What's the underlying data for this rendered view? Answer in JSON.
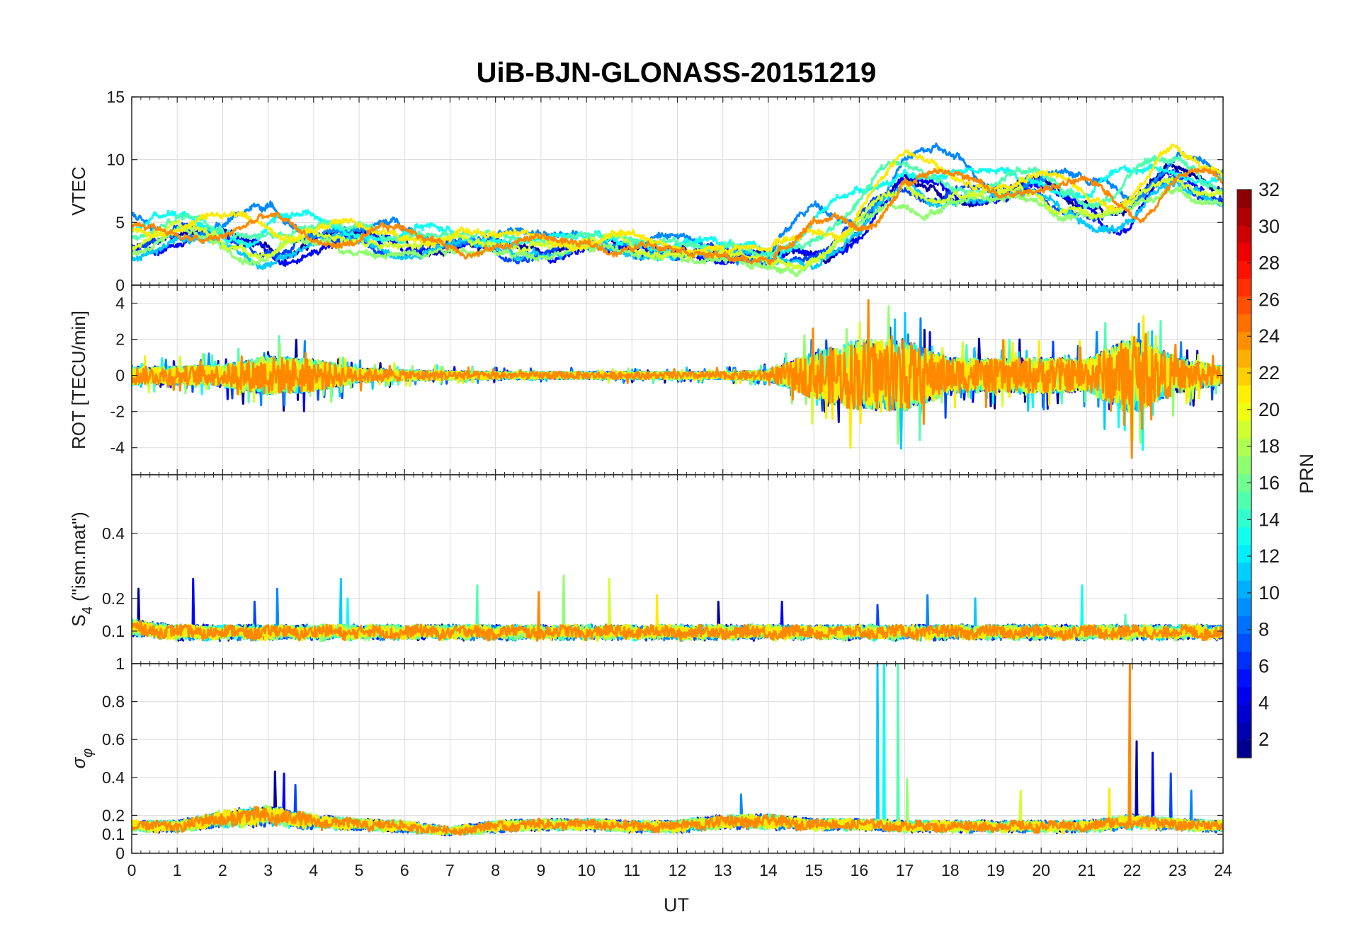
{
  "chart_data": {
    "title": "UiB-BJN-GLONASS-20151219",
    "xlabel": "UT",
    "xlim": [
      0,
      24
    ],
    "xticks": [
      "0",
      "1",
      "2",
      "3",
      "4",
      "5",
      "6",
      "7",
      "8",
      "9",
      "10",
      "11",
      "12",
      "13",
      "14",
      "15",
      "16",
      "17",
      "18",
      "19",
      "20",
      "21",
      "22",
      "23",
      "24"
    ],
    "panels": [
      {
        "id": "vtec",
        "type": "line",
        "ylabel": "VTEC",
        "ylim": [
          0,
          15
        ],
        "yticks": [
          "0",
          "5",
          "10",
          "15"
        ],
        "ytick_values": [
          0,
          5,
          10,
          15
        ],
        "envelope": {
          "x": [
            0,
            1,
            2,
            3,
            4,
            5,
            6,
            7,
            8,
            9,
            10,
            11,
            12,
            13,
            14,
            15,
            16,
            17,
            18,
            19,
            20,
            21,
            22,
            23,
            24
          ],
          "level": [
            4,
            4.5,
            4,
            4.2,
            4,
            3.8,
            3.6,
            3.4,
            3.3,
            3.4,
            3.3,
            3.1,
            3.0,
            2.6,
            2.2,
            4.0,
            5.0,
            8.5,
            8.5,
            7.5,
            8.0,
            7.0,
            6.5,
            9.0,
            8.0
          ],
          "spread": [
            1.5,
            1.5,
            1.6,
            2.2,
            1.8,
            1.2,
            1.2,
            1.0,
            0.9,
            0.8,
            0.9,
            0.9,
            1.0,
            0.9,
            0.9,
            2.4,
            2.8,
            2.6,
            1.8,
            1.6,
            1.6,
            1.6,
            3.4,
            1.8,
            1.4
          ]
        },
        "noise": 0.35
      },
      {
        "id": "rot",
        "type": "line",
        "ylabel": "ROT [TECU/min]",
        "ylim": [
          -5.5,
          5
        ],
        "yticks": [
          "-4",
          "-2",
          "0",
          "2",
          "4"
        ],
        "ytick_values": [
          -4,
          -2,
          0,
          2,
          4
        ],
        "envelope": {
          "x": [
            0,
            1,
            2,
            3,
            4,
            5,
            6,
            7,
            8,
            9,
            10,
            11,
            12,
            13,
            14,
            15,
            16,
            17,
            18,
            19,
            20,
            21,
            22,
            23,
            24
          ],
          "level": [
            0,
            0,
            0,
            0,
            0,
            0,
            0,
            0,
            0,
            0,
            0,
            0,
            0,
            0,
            0,
            0,
            0,
            0,
            0,
            0,
            0,
            0,
            0,
            0,
            0
          ],
          "spread": [
            0.5,
            0.5,
            0.6,
            1.1,
            0.9,
            0.4,
            0.3,
            0.25,
            0.2,
            0.2,
            0.2,
            0.2,
            0.2,
            0.2,
            0.3,
            1.3,
            2.0,
            2.0,
            1.0,
            0.9,
            1.0,
            0.9,
            2.2,
            1.0,
            0.5
          ]
        },
        "noise": 0.0
      },
      {
        "id": "s4",
        "type": "line",
        "ylabel": "S4 (\"ism.mat\")",
        "ylabel_main": "S",
        "ylabel_sub": "4",
        "ylabel_rest": " (\"ism.mat\")",
        "ylim": [
          0,
          0.58
        ],
        "yticks": [
          "0.1",
          "0.2",
          "0.4"
        ],
        "ytick_values": [
          0.1,
          0.2,
          0.4
        ],
        "envelope": {
          "x": [
            0,
            1,
            2,
            3,
            4,
            5,
            6,
            7,
            8,
            9,
            10,
            11,
            12,
            13,
            14,
            15,
            16,
            17,
            18,
            19,
            20,
            21,
            22,
            23,
            24
          ],
          "level": [
            0.09,
            0.08,
            0.08,
            0.08,
            0.08,
            0.08,
            0.08,
            0.08,
            0.08,
            0.08,
            0.08,
            0.08,
            0.08,
            0.08,
            0.08,
            0.08,
            0.08,
            0.08,
            0.08,
            0.08,
            0.08,
            0.08,
            0.08,
            0.08,
            0.08
          ],
          "spread": [
            0.035,
            0.03,
            0.03,
            0.03,
            0.03,
            0.03,
            0.03,
            0.03,
            0.03,
            0.03,
            0.03,
            0.03,
            0.03,
            0.03,
            0.03,
            0.03,
            0.03,
            0.03,
            0.03,
            0.03,
            0.03,
            0.03,
            0.03,
            0.03,
            0.03
          ]
        },
        "noise": 0.0,
        "spikes": [
          [
            0.15,
            0.23
          ],
          [
            1.35,
            0.26
          ],
          [
            2.7,
            0.19
          ],
          [
            3.2,
            0.23
          ],
          [
            4.6,
            0.26
          ],
          [
            4.75,
            0.2
          ],
          [
            7.6,
            0.24
          ],
          [
            9.5,
            0.27
          ],
          [
            10.5,
            0.26
          ],
          [
            11.55,
            0.21
          ],
          [
            8.95,
            0.22
          ],
          [
            12.9,
            0.19
          ],
          [
            14.3,
            0.19
          ],
          [
            16.4,
            0.18
          ],
          [
            17.5,
            0.21
          ],
          [
            18.55,
            0.2
          ],
          [
            20.9,
            0.24
          ],
          [
            21.85,
            0.15
          ]
        ]
      },
      {
        "id": "sigphi",
        "type": "line",
        "ylabel": "σφ",
        "ylabel_main": "σ",
        "ylabel_sub": "φ",
        "ylim": [
          0,
          1
        ],
        "yticks": [
          "0",
          "0.1",
          "0.2",
          "0.4",
          "0.6",
          "0.8",
          "1"
        ],
        "ytick_values": [
          0,
          0.1,
          0.2,
          0.4,
          0.6,
          0.8,
          1
        ],
        "envelope": {
          "x": [
            0,
            1,
            2,
            3,
            4,
            5,
            6,
            7,
            8,
            9,
            10,
            11,
            12,
            13,
            14,
            15,
            16,
            17,
            18,
            19,
            20,
            21,
            22,
            23,
            24
          ],
          "level": [
            0.12,
            0.12,
            0.15,
            0.16,
            0.14,
            0.13,
            0.12,
            0.1,
            0.12,
            0.13,
            0.13,
            0.12,
            0.12,
            0.14,
            0.14,
            0.13,
            0.13,
            0.12,
            0.12,
            0.12,
            0.12,
            0.12,
            0.14,
            0.13,
            0.12
          ],
          "spread": [
            0.04,
            0.04,
            0.06,
            0.07,
            0.05,
            0.04,
            0.04,
            0.03,
            0.04,
            0.04,
            0.04,
            0.04,
            0.04,
            0.05,
            0.05,
            0.04,
            0.04,
            0.04,
            0.04,
            0.04,
            0.04,
            0.04,
            0.05,
            0.04,
            0.04
          ]
        },
        "noise": 0.0,
        "spikes": [
          [
            3.15,
            0.43
          ],
          [
            3.35,
            0.42
          ],
          [
            3.6,
            0.36
          ],
          [
            13.4,
            0.31
          ],
          [
            16.4,
            1.0
          ],
          [
            16.55,
            1.0
          ],
          [
            16.85,
            1.0
          ],
          [
            17.05,
            0.39
          ],
          [
            19.55,
            0.33
          ],
          [
            21.5,
            0.34
          ],
          [
            21.95,
            1.0
          ],
          [
            22.1,
            0.59
          ],
          [
            22.45,
            0.53
          ],
          [
            22.85,
            0.42
          ],
          [
            23.3,
            0.33
          ]
        ]
      }
    ],
    "series_prn": [
      2,
      5,
      7,
      9,
      11,
      13,
      15,
      17,
      19,
      21,
      24
    ],
    "colorbar": {
      "label": "PRN",
      "range": [
        1,
        32
      ],
      "ticks": [
        "2",
        "4",
        "6",
        "8",
        "10",
        "12",
        "14",
        "16",
        "18",
        "20",
        "22",
        "24",
        "26",
        "28",
        "30",
        "32"
      ],
      "tick_values": [
        2,
        4,
        6,
        8,
        10,
        12,
        14,
        16,
        18,
        20,
        22,
        24,
        26,
        28,
        30,
        32
      ],
      "colormap": "jet"
    }
  }
}
